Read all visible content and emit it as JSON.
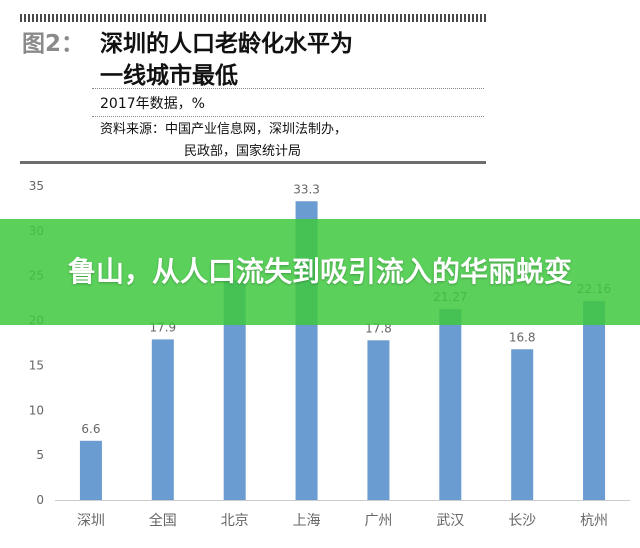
{
  "header": {
    "figure_label": "图2：",
    "title_line1": "深圳的人口老龄化水平为",
    "title_line2": "一线城市最低",
    "subtitle": "2017年数据，%",
    "source_line1": "资料来源：中国产业信息网，深圳法制办，",
    "source_line2": "民政部，国家统计局"
  },
  "banner": {
    "text": "鲁山，从人口流失到吸引流入的华丽蜕变"
  },
  "colors": {
    "bar": "#6a9bd1",
    "banner": "#40c840",
    "axis_text": "#666666"
  },
  "chart_data": {
    "type": "bar",
    "categories": [
      "深圳",
      "全国",
      "北京",
      "上海",
      "广州",
      "武汉",
      "长沙",
      "杭州"
    ],
    "values": [
      6.6,
      17.9,
      24.5,
      33.3,
      17.8,
      21.27,
      16.8,
      22.16
    ],
    "data_labels": [
      "6.6",
      "17.9",
      "",
      "33.3",
      "17.8",
      "21.27",
      "16.8",
      "22.16"
    ],
    "yticks": [
      "0",
      "5",
      "10",
      "15",
      "20",
      "25",
      "30",
      "35"
    ],
    "ylim": [
      0,
      35
    ],
    "grid": false,
    "legend": "none"
  }
}
